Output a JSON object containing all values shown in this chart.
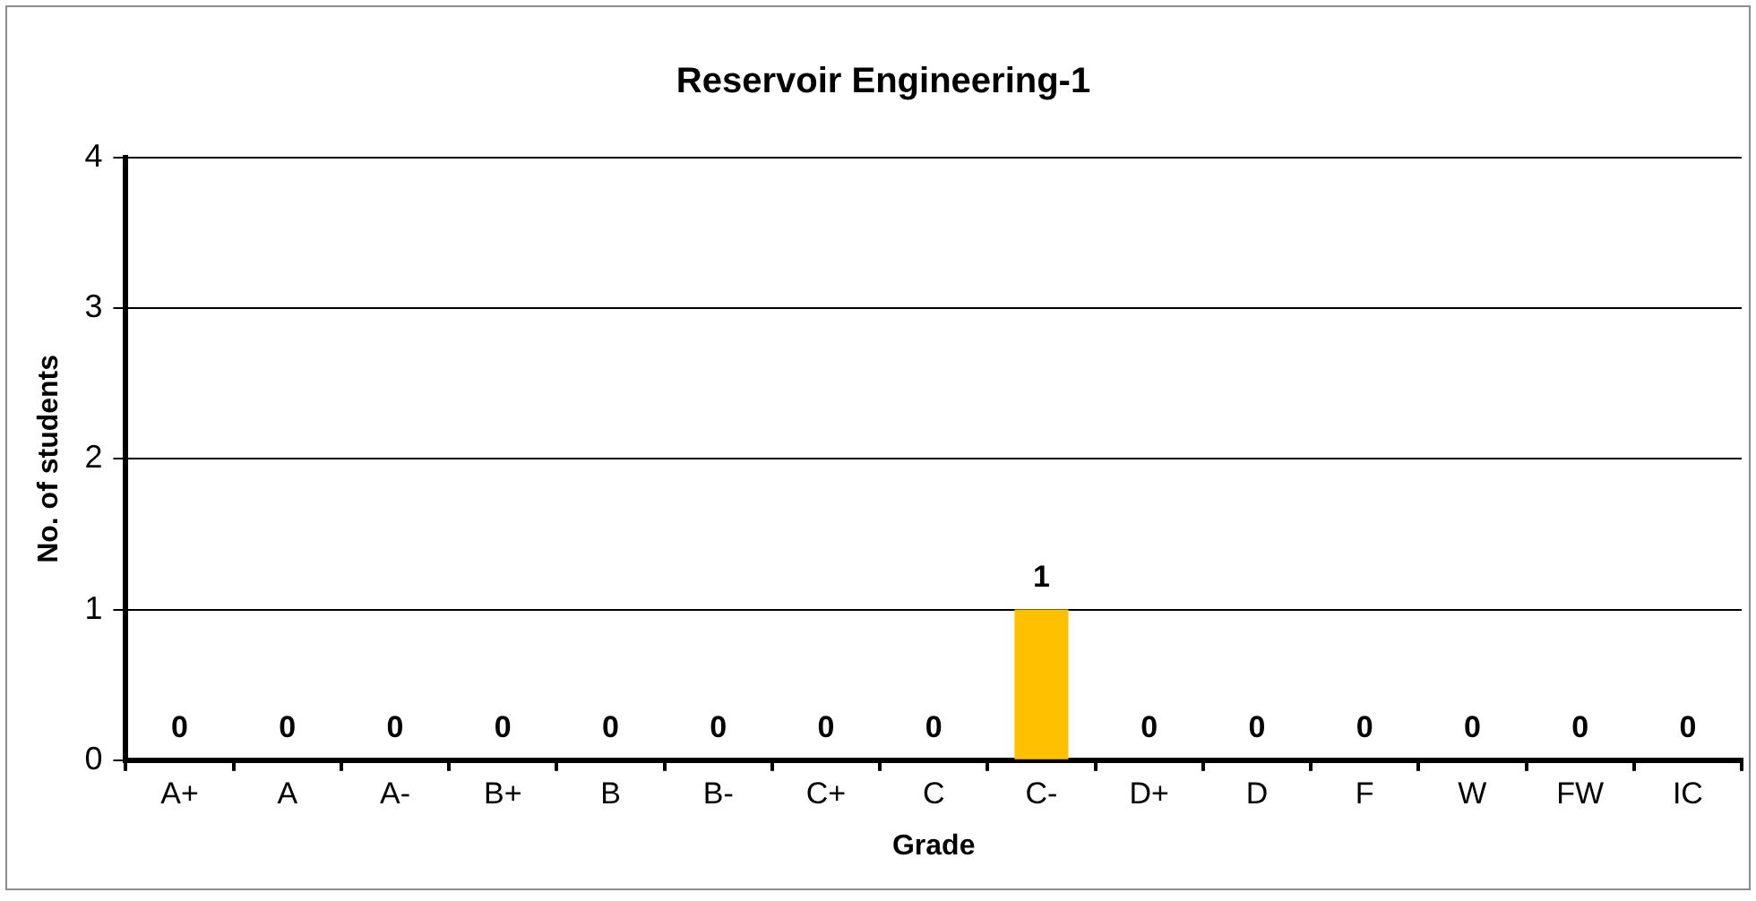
{
  "chart_data": {
    "type": "bar",
    "title": "Reservoir Engineering-1",
    "xlabel": "Grade",
    "ylabel": "No. of students",
    "categories": [
      "A+",
      "A",
      "A-",
      "B+",
      "B",
      "B-",
      "C+",
      "C",
      "C-",
      "D+",
      "D",
      "F",
      "W",
      "FW",
      "IC"
    ],
    "values": [
      0,
      0,
      0,
      0,
      0,
      0,
      0,
      0,
      1,
      0,
      0,
      0,
      0,
      0,
      0
    ],
    "color": "#ffc000",
    "ylim": [
      0,
      4
    ],
    "yticks": [
      0,
      1,
      2,
      3,
      4
    ],
    "grid": "y",
    "legend": false,
    "data_labels": true
  }
}
